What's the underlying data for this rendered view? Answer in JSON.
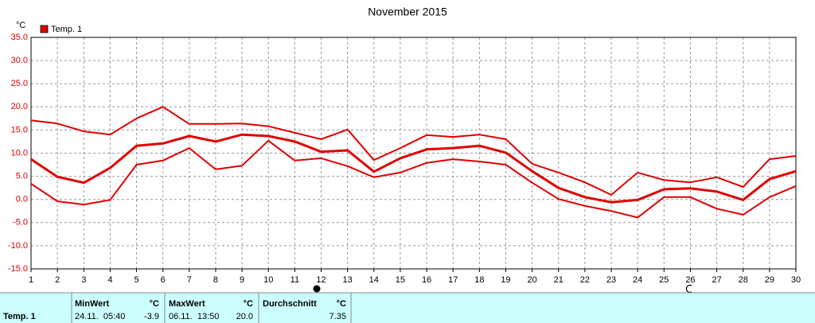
{
  "chart_data": {
    "type": "line",
    "title": "November 2015",
    "y_label": "°C",
    "x": [
      1,
      2,
      3,
      4,
      5,
      6,
      7,
      8,
      9,
      10,
      11,
      12,
      13,
      14,
      15,
      16,
      17,
      18,
      19,
      20,
      21,
      22,
      23,
      24,
      25,
      26,
      27,
      28,
      29,
      30
    ],
    "xlim": [
      1,
      30
    ],
    "xticks": [
      1,
      2,
      3,
      4,
      5,
      6,
      7,
      8,
      9,
      10,
      11,
      12,
      13,
      14,
      15,
      16,
      17,
      18,
      19,
      20,
      21,
      22,
      23,
      24,
      25,
      26,
      27,
      28,
      29,
      30
    ],
    "ylim": [
      -15,
      35
    ],
    "yticks": [
      {
        "value": -15,
        "label": "-15.0"
      },
      {
        "value": -10,
        "label": "-10.0"
      },
      {
        "value": -5,
        "label": "-5.0"
      },
      {
        "value": 0,
        "label": "0.0"
      },
      {
        "value": 5,
        "label": "5.0"
      },
      {
        "value": 10,
        "label": "10.0"
      },
      {
        "value": 15,
        "label": "15.0"
      },
      {
        "value": 20,
        "label": "20.0"
      },
      {
        "value": 25,
        "label": "25.0"
      },
      {
        "value": 30,
        "label": "30.0"
      },
      {
        "value": 35,
        "label": "35.0"
      }
    ],
    "grid": true,
    "series": [
      {
        "color": "#e00000",
        "values": [
          17.1,
          16.4,
          14.7,
          14.0,
          17.5,
          20.0,
          16.3,
          16.3,
          16.4,
          15.8,
          14.4,
          13.0,
          15.1,
          8.5,
          11.1,
          13.9,
          13.5,
          14.0,
          13.0,
          7.7,
          5.8,
          3.7,
          1.0,
          5.8,
          4.2,
          3.7,
          4.8,
          2.7,
          8.7,
          9.4
        ]
      },
      {
        "name": "Temp. 1",
        "color": "#e00000",
        "values": [
          8.7,
          4.9,
          3.6,
          6.8,
          11.6,
          12.1,
          13.7,
          12.5,
          14.0,
          13.7,
          12.5,
          10.3,
          10.6,
          6.0,
          8.9,
          10.8,
          11.1,
          11.6,
          10.1,
          6.1,
          2.5,
          0.5,
          -0.6,
          -0.1,
          2.2,
          2.4,
          1.7,
          -0.1,
          4.4,
          6.1
        ]
      },
      {
        "color": "#e00000",
        "values": [
          3.4,
          -0.4,
          -1.1,
          -0.1,
          7.5,
          8.4,
          11.1,
          6.5,
          7.3,
          12.7,
          8.4,
          8.9,
          7.2,
          4.8,
          5.8,
          7.9,
          8.7,
          8.2,
          7.5,
          3.6,
          0.1,
          -1.4,
          -2.5,
          -3.9,
          0.5,
          0.5,
          -2.0,
          -3.3,
          0.5,
          2.9
        ]
      }
    ]
  },
  "table": {
    "row_label": "Temp. 1",
    "columns": [
      {
        "header": "MinWert",
        "unit": "°C",
        "time": "24.11.  05:40",
        "value": "-3.9"
      },
      {
        "header": "MaxWert",
        "unit": "°C",
        "time": "06.11.  13:50",
        "value": "20.0"
      },
      {
        "header": "Durchschnitt",
        "unit": "°C",
        "value": "7.35"
      }
    ]
  }
}
